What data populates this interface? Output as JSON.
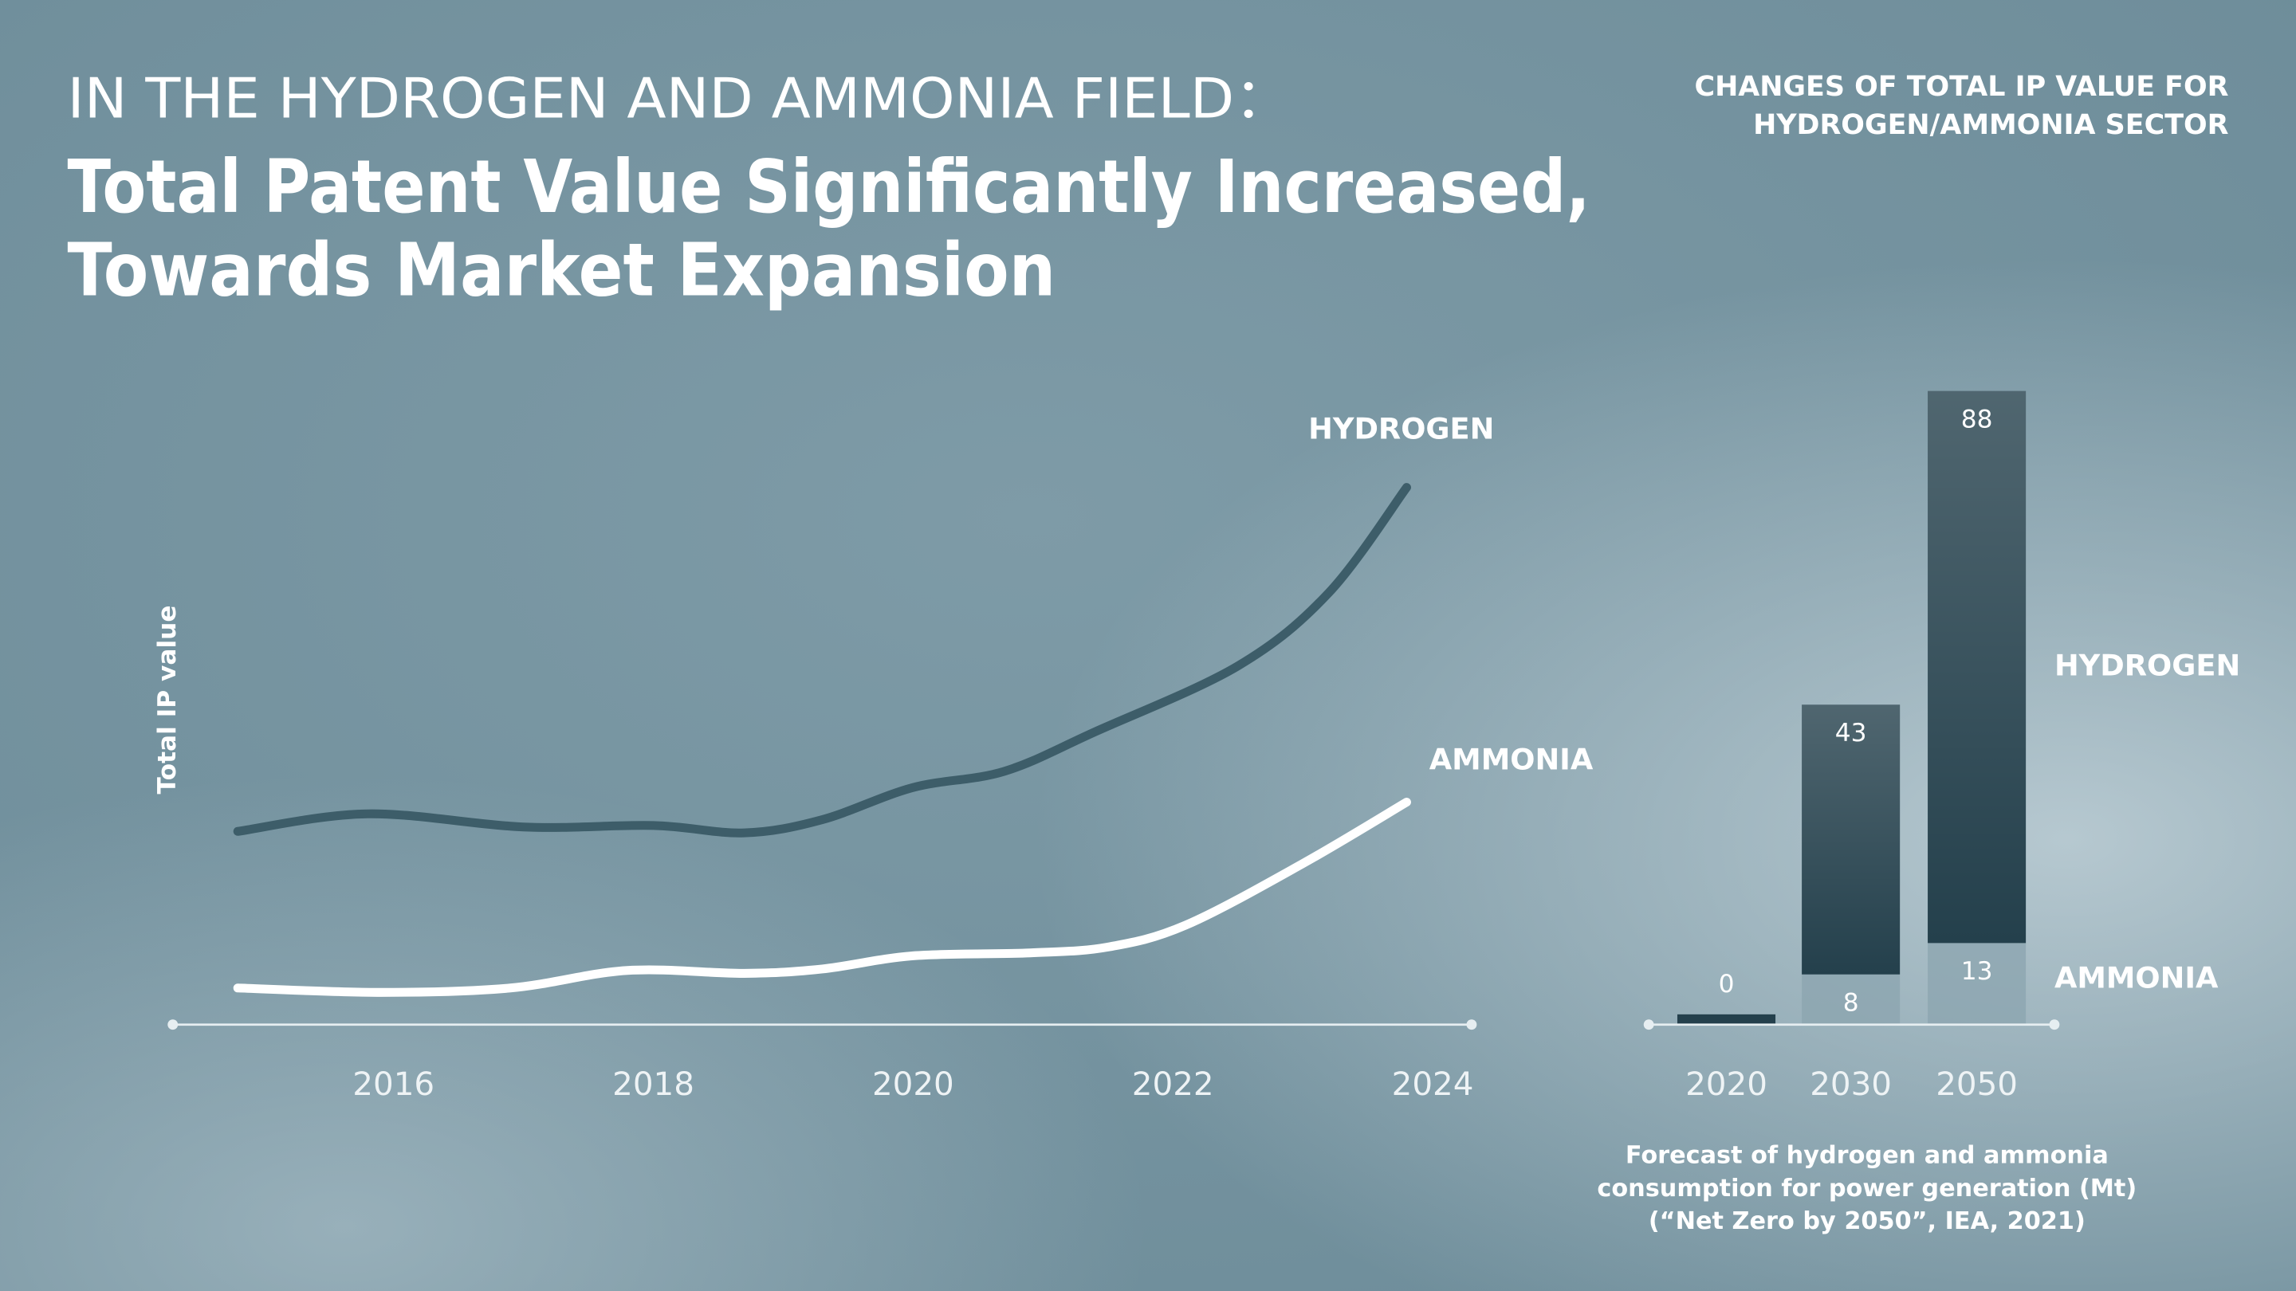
{
  "header": {
    "kicker": "IN THE HYDROGEN AND AMMONIA FIELD：",
    "headline": [
      "Total Patent Value Significantly Increased,",
      "Towards Market Expansion"
    ]
  },
  "chart_data": [
    {
      "type": "line",
      "y_label": "Total IP value",
      "xlim": [
        2014.3,
        2024.3
      ],
      "xticks": [
        2016,
        2018,
        2020,
        2022,
        2024
      ],
      "ylim": [
        0,
        100
      ],
      "series": [
        {
          "name": "HYDROGEN",
          "color": "#3d5d69",
          "x": [
            2014.8,
            2015.8,
            2017.0,
            2018.0,
            2018.7,
            2019.3,
            2020.0,
            2020.7,
            2021.4,
            2022.5,
            2023.2,
            2023.8
          ],
          "values": [
            33,
            36,
            33.75,
            34,
            32.75,
            35,
            40.5,
            43.25,
            50,
            61.25,
            73.75,
            91.75
          ]
        },
        {
          "name": "AMMONIA",
          "color": "#ffffff",
          "x": [
            2014.8,
            2015.9,
            2016.9,
            2017.8,
            2018.7,
            2019.3,
            2020.0,
            2020.9,
            2021.5,
            2022.1,
            2023.0,
            2023.8
          ],
          "values": [
            6.25,
            5.5,
            6.25,
            9.25,
            8.75,
            9.5,
            11.75,
            12.25,
            13.25,
            17,
            27.5,
            38
          ]
        }
      ]
    },
    {
      "type": "stacked_bar",
      "title": [
        "CHANGES OF TOTAL IP VALUE FOR",
        "HYDROGEN/AMMONIA SECTOR"
      ],
      "categories": [
        "2020",
        "2030",
        "2050"
      ],
      "ylim": [
        0,
        105
      ],
      "series": [
        {
          "name": "AMMONIA",
          "color": "#8ba4af",
          "values": [
            0,
            8,
            13
          ],
          "value_labels": [
            null,
            "8",
            "13"
          ]
        },
        {
          "name": "HYDROGEN",
          "color": "#24404c",
          "values": [
            0,
            43,
            88
          ]
        }
      ],
      "note": [
        "Forecast of hydrogen and ammonia",
        "consumption for power generation (Mt)",
        "(“Net Zero by 2050”, IEA, 2021)"
      ]
    }
  ]
}
